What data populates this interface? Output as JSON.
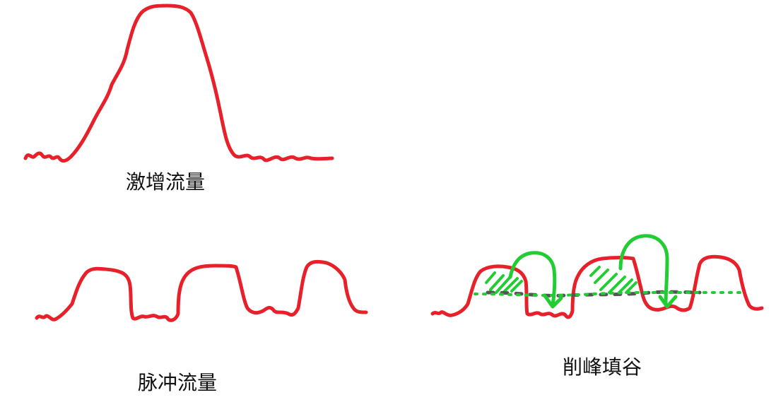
{
  "labels": {
    "surge_traffic": "激增流量",
    "pulse_traffic": "脉冲流量",
    "peak_shaving_valley_filling": "削峰填谷"
  },
  "colors": {
    "traffic_line": "#e8202a",
    "shift_arrow": "#22cc33",
    "average_line": "#555555",
    "smoothed_line": "#22cc33",
    "text": "#111111"
  }
}
